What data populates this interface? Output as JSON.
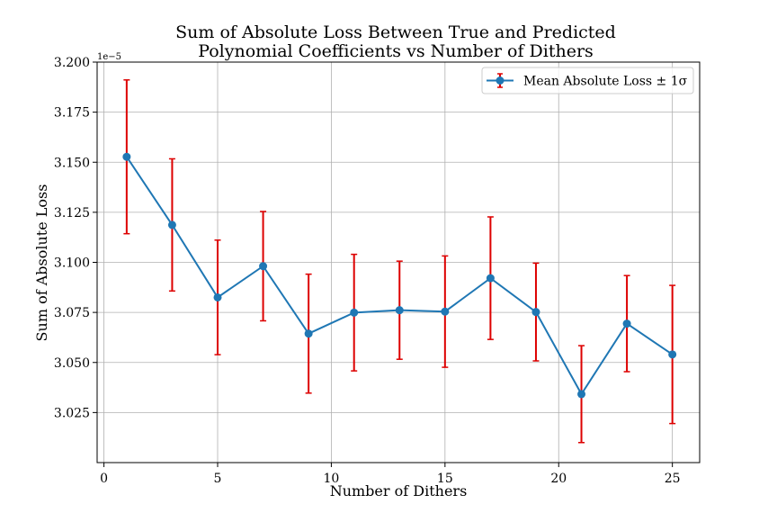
{
  "chart_data": {
    "type": "line",
    "title": "Sum of Absolute Loss Between True and Predicted\nPolynomial Coefficients vs Number of Dithers",
    "xlabel": "Number of Dithers",
    "ylabel": "Sum of Absolute Loss",
    "y_offset_label": "1e−5",
    "xlim": [
      -0.3,
      26.2
    ],
    "ylim": [
      3.0,
      3.2
    ],
    "xticks": [
      0,
      5,
      10,
      15,
      20,
      25
    ],
    "yticks": [
      3.025,
      3.05,
      3.075,
      3.1,
      3.125,
      3.15,
      3.175,
      3.2
    ],
    "ytick_labels": [
      "3.025",
      "3.050",
      "3.075",
      "3.100",
      "3.125",
      "3.150",
      "3.175",
      "3.200"
    ],
    "grid": true,
    "legend_position": "upper right",
    "series": [
      {
        "name": "Mean Absolute Loss ± 1σ",
        "color": "#1f77b4",
        "error_color": "#dd0000",
        "x": [
          1,
          3,
          5,
          7,
          9,
          11,
          13,
          15,
          17,
          19,
          21,
          23,
          25
        ],
        "y": [
          3.1527,
          3.1187,
          3.0825,
          3.0981,
          3.0644,
          3.0749,
          3.0761,
          3.0754,
          3.0921,
          3.0752,
          3.0342,
          3.0694,
          3.054
        ],
        "err": [
          0.0384,
          0.033,
          0.0286,
          0.0273,
          0.0297,
          0.0291,
          0.0245,
          0.0278,
          0.0306,
          0.0244,
          0.0242,
          0.024,
          0.0345
        ]
      }
    ]
  }
}
